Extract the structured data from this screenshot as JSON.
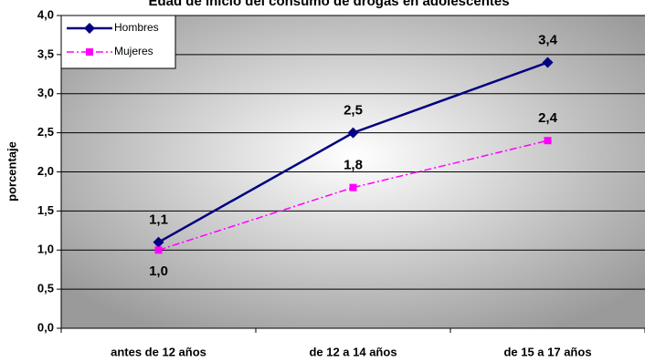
{
  "chart_data": {
    "type": "line",
    "title": "Edad de inicio del consumo de drogas en adolescentes",
    "y_label": "porcentaje",
    "categories": [
      "antes de 12 años",
      "de 12 a 14 años",
      "de 15 a 17 años"
    ],
    "series": [
      {
        "name": "Hombres",
        "color": "#000080",
        "marker": "diamond",
        "dash": "solid",
        "values": [
          1.1,
          2.5,
          3.4
        ],
        "value_labels": [
          "1,1",
          "2,5",
          "3,4"
        ]
      },
      {
        "name": "Mujeres",
        "color": "#ff00ff",
        "marker": "square",
        "dash": "dashdot",
        "values": [
          1.0,
          1.8,
          2.4
        ],
        "value_labels": [
          "1,0",
          "1,8",
          "2,4"
        ]
      }
    ],
    "ylim": [
      0,
      4
    ],
    "yticks": [
      {
        "value": 0,
        "label": "0,0"
      },
      {
        "value": 0.5,
        "label": "0,5"
      },
      {
        "value": 1,
        "label": "1,0"
      },
      {
        "value": 1.5,
        "label": "1,5"
      },
      {
        "value": 2,
        "label": "2,0"
      },
      {
        "value": 2.5,
        "label": "2,5"
      },
      {
        "value": 3,
        "label": "3,0"
      },
      {
        "value": 3.5,
        "label": "3,5"
      },
      {
        "value": 4,
        "label": "4,0"
      }
    ],
    "grid": true,
    "legend": "upper left"
  }
}
